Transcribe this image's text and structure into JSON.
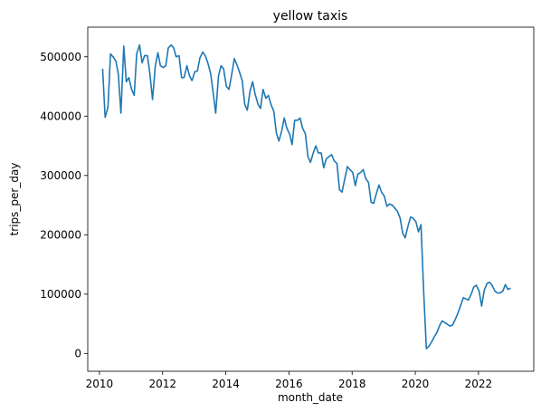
{
  "chart_data": {
    "type": "line",
    "title": "yellow taxis",
    "xlabel": "month_date",
    "ylabel": "trips_per_day",
    "x": [
      2010.1,
      2010.18,
      2010.27,
      2010.35,
      2010.43,
      2010.52,
      2010.6,
      2010.68,
      2010.77,
      2010.85,
      2010.93,
      2011.02,
      2011.1,
      2011.18,
      2011.27,
      2011.35,
      2011.43,
      2011.52,
      2011.6,
      2011.68,
      2011.77,
      2011.85,
      2011.93,
      2012.02,
      2012.1,
      2012.18,
      2012.27,
      2012.35,
      2012.43,
      2012.52,
      2012.6,
      2012.68,
      2012.77,
      2012.85,
      2012.93,
      2013.02,
      2013.1,
      2013.18,
      2013.27,
      2013.35,
      2013.43,
      2013.52,
      2013.6,
      2013.68,
      2013.77,
      2013.85,
      2013.93,
      2014.02,
      2014.1,
      2014.18,
      2014.27,
      2014.35,
      2014.43,
      2014.52,
      2014.6,
      2014.68,
      2014.77,
      2014.85,
      2014.93,
      2015.02,
      2015.1,
      2015.18,
      2015.27,
      2015.35,
      2015.43,
      2015.52,
      2015.6,
      2015.68,
      2015.77,
      2015.85,
      2015.93,
      2016.02,
      2016.1,
      2016.18,
      2016.27,
      2016.35,
      2016.43,
      2016.52,
      2016.6,
      2016.68,
      2016.77,
      2016.85,
      2016.93,
      2017.02,
      2017.1,
      2017.18,
      2017.27,
      2017.35,
      2017.43,
      2017.52,
      2017.6,
      2017.68,
      2017.77,
      2017.85,
      2017.93,
      2018.02,
      2018.1,
      2018.18,
      2018.27,
      2018.35,
      2018.43,
      2018.52,
      2018.6,
      2018.68,
      2018.77,
      2018.85,
      2018.93,
      2019.02,
      2019.1,
      2019.18,
      2019.27,
      2019.35,
      2019.43,
      2019.52,
      2019.6,
      2019.68,
      2019.77,
      2019.85,
      2019.93,
      2020.02,
      2020.1,
      2020.18,
      2020.27,
      2020.35,
      2020.43,
      2020.52,
      2020.6,
      2020.68,
      2020.77,
      2020.85,
      2020.93,
      2021.02,
      2021.1,
      2021.18,
      2021.27,
      2021.35,
      2021.43,
      2021.52,
      2021.6,
      2021.68,
      2021.77,
      2021.85,
      2021.93,
      2022.02,
      2022.1,
      2022.18,
      2022.27,
      2022.35,
      2022.43,
      2022.52,
      2022.6,
      2022.68,
      2022.77,
      2022.85,
      2022.93,
      2023.02
    ],
    "series": [
      {
        "name": "trips_per_day",
        "color": "#1f77b4",
        "values": [
          480000,
          398000,
          415000,
          505000,
          500000,
          493000,
          470000,
          405000,
          518000,
          458000,
          465000,
          445000,
          435000,
          505000,
          520000,
          490000,
          502000,
          502000,
          470000,
          428000,
          485000,
          507000,
          485000,
          482000,
          485000,
          515000,
          520000,
          515000,
          500000,
          502000,
          465000,
          465000,
          485000,
          468000,
          460000,
          475000,
          476000,
          498000,
          508000,
          502000,
          490000,
          472000,
          440000,
          405000,
          468000,
          485000,
          480000,
          450000,
          445000,
          468000,
          497000,
          487000,
          475000,
          460000,
          420000,
          410000,
          443000,
          458000,
          437000,
          420000,
          413000,
          445000,
          430000,
          435000,
          420000,
          408000,
          372000,
          358000,
          375000,
          397000,
          380000,
          370000,
          352000,
          393000,
          393000,
          397000,
          380000,
          370000,
          332000,
          322000,
          338000,
          350000,
          338000,
          338000,
          313000,
          328000,
          332000,
          335000,
          325000,
          320000,
          276000,
          272000,
          295000,
          315000,
          310000,
          305000,
          283000,
          302000,
          305000,
          310000,
          295000,
          288000,
          255000,
          253000,
          270000,
          284000,
          272000,
          265000,
          248000,
          252000,
          250000,
          245000,
          240000,
          228000,
          203000,
          195000,
          215000,
          230000,
          228000,
          222000,
          205000,
          217000,
          98000,
          8000,
          12000,
          20000,
          28000,
          35000,
          47000,
          55000,
          52000,
          49000,
          46000,
          48000,
          58000,
          68000,
          80000,
          94000,
          92000,
          90000,
          100000,
          112000,
          115000,
          105000,
          80000,
          106000,
          118000,
          120000,
          115000,
          105000,
          102000,
          102000,
          105000,
          116000,
          108000,
          110000
        ]
      }
    ],
    "xlim": [
      2009.63,
      2023.75
    ],
    "xticks": [
      2010,
      2012,
      2014,
      2016,
      2018,
      2020,
      2022
    ],
    "ylim": [
      -30000,
      550000
    ],
    "yticks": [
      0,
      100000,
      200000,
      300000,
      400000,
      500000
    ],
    "grid": false
  }
}
